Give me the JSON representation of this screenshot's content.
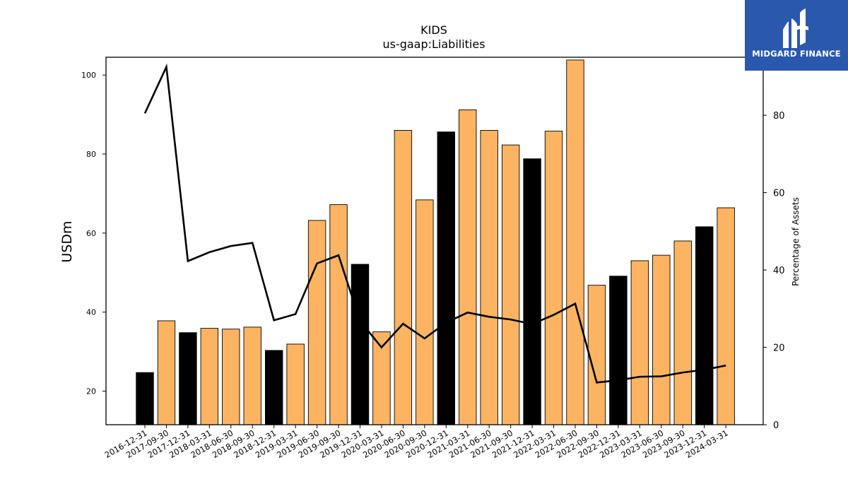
{
  "chart_data": {
    "type": "bar",
    "title": "KIDS",
    "subtitle": "us-gaap:Liabilities",
    "ylabel": "USDm",
    "y2label": "Percentage of Assets",
    "ylim": [
      11.5,
      104.5
    ],
    "y2lim": [
      0,
      95
    ],
    "yticks": [
      20,
      40,
      60,
      80,
      100
    ],
    "y2ticks": [
      0,
      20,
      40,
      60,
      80
    ],
    "grid": false,
    "categories": [
      "2016-12-31",
      "2017-09-30",
      "2017-12-31",
      "2018-03-31",
      "2018-06-30",
      "2018-09-30",
      "2018-12-31",
      "2019-03-31",
      "2019-06-30",
      "2019-09-30",
      "2019-12-31",
      "2020-03-31",
      "2020-06-30",
      "2020-09-30",
      "2020-12-31",
      "2021-03-31",
      "2021-06-30",
      "2021-09-30",
      "2021-12-31",
      "2022-03-31",
      "2022-06-30",
      "2022-09-30",
      "2022-12-31",
      "2023-03-31",
      "2023-06-30",
      "2023-09-30",
      "2023-12-31",
      "2024-03-31"
    ],
    "series": [
      {
        "type": "bar",
        "values": [
          24.7,
          37.8,
          34.8,
          35.9,
          35.7,
          36.2,
          30.3,
          31.9,
          63.2,
          67.2,
          52.1,
          35.0,
          86.0,
          68.4,
          85.6,
          91.2,
          86.0,
          82.3,
          78.8,
          85.8,
          103.8,
          46.8,
          49.1,
          53.0,
          54.4,
          58.0,
          61.6,
          66.4
        ],
        "colors": [
          "#000000",
          "#fdb462",
          "#000000",
          "#fdb462",
          "#fdb462",
          "#fdb462",
          "#000000",
          "#fdb462",
          "#fdb462",
          "#fdb462",
          "#000000",
          "#fdb462",
          "#fdb462",
          "#fdb462",
          "#000000",
          "#fdb462",
          "#fdb462",
          "#fdb462",
          "#000000",
          "#fdb462",
          "#fdb462",
          "#fdb462",
          "#000000",
          "#fdb462",
          "#fdb462",
          "#fdb462",
          "#000000",
          "#fdb462"
        ]
      },
      {
        "type": "line",
        "axis": "right",
        "color": "#000000",
        "values": [
          80.5,
          92.5,
          42.3,
          44.6,
          46.2,
          47.0,
          27.0,
          28.6,
          41.7,
          43.8,
          26.8,
          20.0,
          26.1,
          22.3,
          26.4,
          29.0,
          27.9,
          27.2,
          26.0,
          28.4,
          31.3,
          10.9,
          11.5,
          12.4,
          12.5,
          13.5,
          14.2,
          15.3
        ]
      }
    ]
  },
  "logo": {
    "text": "MIDGARD FINANCE",
    "color": "#2a58ad"
  }
}
